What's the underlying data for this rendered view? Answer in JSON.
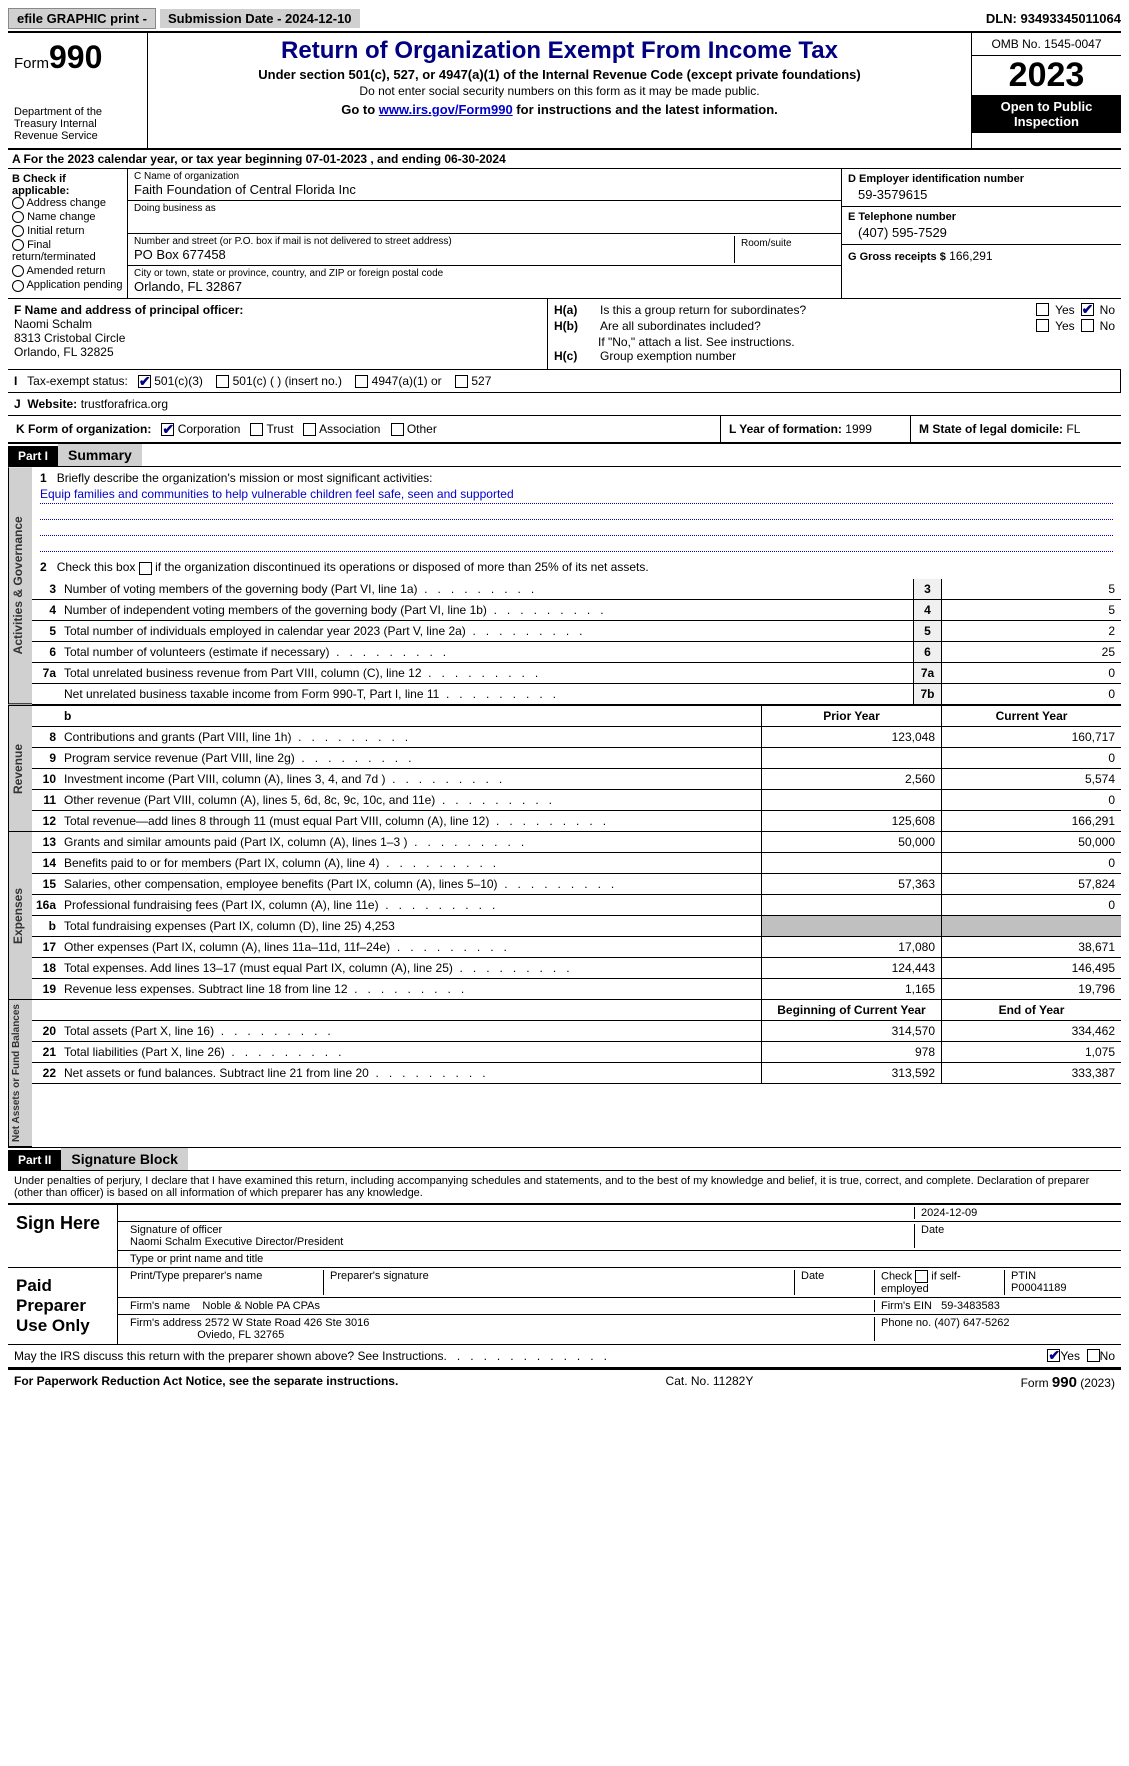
{
  "topbar": {
    "efile": "efile GRAPHIC print -",
    "submission": "Submission Date - 2024-12-10",
    "dln": "DLN: 93493345011064"
  },
  "header": {
    "form_prefix": "Form",
    "form_number": "990",
    "dept": "Department of the Treasury\nInternal Revenue Service",
    "title": "Return of Organization Exempt From Income Tax",
    "sub1": "Under section 501(c), 527, or 4947(a)(1) of the Internal Revenue Code (except private foundations)",
    "sub2": "Do not enter social security numbers on this form as it may be made public.",
    "sub3_pre": "Go to ",
    "sub3_link": "www.irs.gov/Form990",
    "sub3_post": " for instructions and the latest information.",
    "omb": "OMB No. 1545-0047",
    "year": "2023",
    "openpub": "Open to Public Inspection"
  },
  "row_a": "A  For the 2023 calendar year, or tax year beginning 07-01-2023   , and ending 06-30-2024",
  "box_b": {
    "title": "B Check if applicable:",
    "items": [
      "Address change",
      "Name change",
      "Initial return",
      "Final return/terminated",
      "Amended return",
      "Application pending"
    ]
  },
  "box_c": {
    "name_lbl": "C Name of organization",
    "name": "Faith Foundation of Central Florida Inc",
    "dba_lbl": "Doing business as",
    "dba": "",
    "addr_lbl": "Number and street (or P.O. box if mail is not delivered to street address)",
    "addr": "PO Box 677458",
    "room_lbl": "Room/suite",
    "city_lbl": "City or town, state or province, country, and ZIP or foreign postal code",
    "city": "Orlando, FL  32867"
  },
  "box_d": {
    "lbl": "D Employer identification number",
    "val": "59-3579615"
  },
  "box_e": {
    "lbl": "E Telephone number",
    "val": "(407) 595-7529"
  },
  "box_g": {
    "lbl": "G Gross receipts $",
    "val": "166,291"
  },
  "box_f": {
    "lbl": "F  Name and address of principal officer:",
    "name": "Naomi Schalm",
    "addr1": "8313 Cristobal Circle",
    "addr2": "Orlando, FL  32825"
  },
  "box_h": {
    "ha": "Is this a group return for subordinates?",
    "hb": "Are all subordinates included?",
    "hnote": "If \"No,\" attach a list. See instructions.",
    "hc": "Group exemption number"
  },
  "row_i": {
    "lbl": "Tax-exempt status:",
    "opts": [
      "501(c)(3)",
      "501(c) (  ) (insert no.)",
      "4947(a)(1) or",
      "527"
    ]
  },
  "row_j": {
    "lbl": "Website:",
    "val": "trustforafrica.org"
  },
  "row_k": {
    "lbl": "K Form of organization:",
    "opts": [
      "Corporation",
      "Trust",
      "Association",
      "Other"
    ]
  },
  "row_l": {
    "lbl": "L Year of formation:",
    "val": "1999"
  },
  "row_m": {
    "lbl": "M State of legal domicile:",
    "val": "FL"
  },
  "part1": {
    "hdr": "Part I",
    "title": "Summary",
    "line1_lbl": "Briefly describe the organization's mission or most significant activities:",
    "line1_val": "Equip families and communities to help vulnerable children feel safe, seen and supported",
    "line2": "Check this box      if the organization discontinued its operations or disposed of more than 25% of its net assets.",
    "gov_tab": "Activities & Governance",
    "rev_tab": "Revenue",
    "exp_tab": "Expenses",
    "net_tab": "Net Assets or Fund Balances",
    "rows_gov": [
      {
        "n": "3",
        "d": "Number of voting members of the governing body (Part VI, line 1a)",
        "b": "3",
        "v": "5"
      },
      {
        "n": "4",
        "d": "Number of independent voting members of the governing body (Part VI, line 1b)",
        "b": "4",
        "v": "5"
      },
      {
        "n": "5",
        "d": "Total number of individuals employed in calendar year 2023 (Part V, line 2a)",
        "b": "5",
        "v": "2"
      },
      {
        "n": "6",
        "d": "Total number of volunteers (estimate if necessary)",
        "b": "6",
        "v": "25"
      },
      {
        "n": "7a",
        "d": "Total unrelated business revenue from Part VIII, column (C), line 12",
        "b": "7a",
        "v": "0"
      },
      {
        "n": "",
        "d": "Net unrelated business taxable income from Form 990-T, Part I, line 11",
        "b": "7b",
        "v": "0"
      }
    ],
    "hdr_prior": "Prior Year",
    "hdr_current": "Current Year",
    "rows_rev": [
      {
        "n": "8",
        "d": "Contributions and grants (Part VIII, line 1h)",
        "p": "123,048",
        "c": "160,717"
      },
      {
        "n": "9",
        "d": "Program service revenue (Part VIII, line 2g)",
        "p": "",
        "c": "0"
      },
      {
        "n": "10",
        "d": "Investment income (Part VIII, column (A), lines 3, 4, and 7d )",
        "p": "2,560",
        "c": "5,574"
      },
      {
        "n": "11",
        "d": "Other revenue (Part VIII, column (A), lines 5, 6d, 8c, 9c, 10c, and 11e)",
        "p": "",
        "c": "0"
      },
      {
        "n": "12",
        "d": "Total revenue—add lines 8 through 11 (must equal Part VIII, column (A), line 12)",
        "p": "125,608",
        "c": "166,291"
      }
    ],
    "rows_exp": [
      {
        "n": "13",
        "d": "Grants and similar amounts paid (Part IX, column (A), lines 1–3 )",
        "p": "50,000",
        "c": "50,000"
      },
      {
        "n": "14",
        "d": "Benefits paid to or for members (Part IX, column (A), line 4)",
        "p": "",
        "c": "0"
      },
      {
        "n": "15",
        "d": "Salaries, other compensation, employee benefits (Part IX, column (A), lines 5–10)",
        "p": "57,363",
        "c": "57,824"
      },
      {
        "n": "16a",
        "d": "Professional fundraising fees (Part IX, column (A), line 11e)",
        "p": "",
        "c": "0"
      },
      {
        "n": "b",
        "d": "Total fundraising expenses (Part IX, column (D), line 25) 4,253",
        "p": "GREY",
        "c": "GREY"
      },
      {
        "n": "17",
        "d": "Other expenses (Part IX, column (A), lines 11a–11d, 11f–24e)",
        "p": "17,080",
        "c": "38,671"
      },
      {
        "n": "18",
        "d": "Total expenses. Add lines 13–17 (must equal Part IX, column (A), line 25)",
        "p": "124,443",
        "c": "146,495"
      },
      {
        "n": "19",
        "d": "Revenue less expenses. Subtract line 18 from line 12",
        "p": "1,165",
        "c": "19,796"
      }
    ],
    "hdr_begin": "Beginning of Current Year",
    "hdr_end": "End of Year",
    "rows_net": [
      {
        "n": "20",
        "d": "Total assets (Part X, line 16)",
        "p": "314,570",
        "c": "334,462"
      },
      {
        "n": "21",
        "d": "Total liabilities (Part X, line 26)",
        "p": "978",
        "c": "1,075"
      },
      {
        "n": "22",
        "d": "Net assets or fund balances. Subtract line 21 from line 20",
        "p": "313,592",
        "c": "333,387"
      }
    ]
  },
  "part2": {
    "hdr": "Part II",
    "title": "Signature Block",
    "decl": "Under penalties of perjury, I declare that I have examined this return, including accompanying schedules and statements, and to the best of my knowledge and belief, it is true, correct, and complete. Declaration of preparer (other than officer) is based on all information of which preparer has any knowledge.",
    "sign_here": "Sign Here",
    "sig_date": "2024-12-09",
    "sig_officer_lbl": "Signature of officer",
    "sig_officer": "Naomi Schalm  Executive Director/President",
    "sig_type_lbl": "Type or print name and title",
    "date_lbl": "Date",
    "paid": "Paid Preparer Use Only",
    "prep_name_lbl": "Print/Type preparer's name",
    "prep_sig_lbl": "Preparer's signature",
    "prep_date_lbl": "Date",
    "prep_check": "Check        if self-employed",
    "ptin_lbl": "PTIN",
    "ptin": "P00041189",
    "firm_name_lbl": "Firm's name",
    "firm_name": "Noble & Noble PA CPAs",
    "firm_ein_lbl": "Firm's EIN",
    "firm_ein": "59-3483583",
    "firm_addr_lbl": "Firm's address",
    "firm_addr1": "2572 W State Road 426 Ste 3016",
    "firm_addr2": "Oviedo, FL  32765",
    "phone_lbl": "Phone no.",
    "phone": "(407) 647-5262",
    "discuss": "May the IRS discuss this return with the preparer shown above? See Instructions."
  },
  "footer": {
    "left": "For Paperwork Reduction Act Notice, see the separate instructions.",
    "mid": "Cat. No. 11282Y",
    "right_pre": "Form ",
    "right_num": "990",
    "right_post": " (2023)"
  },
  "colors": {
    "navy": "#000080",
    "link": "#0000cc",
    "grey_bg": "#d0d0d0",
    "cell_grey": "#c0c0c0"
  }
}
